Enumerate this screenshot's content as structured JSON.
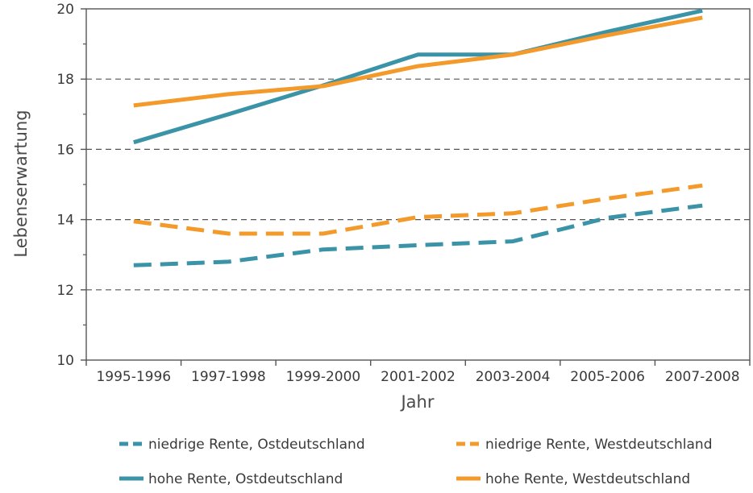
{
  "chart_data": {
    "type": "line",
    "title": "",
    "xlabel": "Jahr",
    "ylabel": "Lebenserwartung",
    "categories": [
      "1995-1996",
      "1997-1998",
      "1999-2000",
      "2001-2002",
      "2003-2004",
      "2005-2006",
      "2007-2008"
    ],
    "ylim": [
      10,
      20
    ],
    "yticks": [
      10,
      12,
      14,
      16,
      18,
      20
    ],
    "grid": "horizontal dashed at 12, 14, 16, 18",
    "legend_position": "bottom",
    "series": [
      {
        "name": "niedrige Rente, Ostdeutschland",
        "color": "#3a93a6",
        "dash": "dashed",
        "values": [
          12.7,
          12.8,
          13.15,
          13.27,
          13.38,
          14.05,
          14.4
        ]
      },
      {
        "name": "niedrige Rente, Westdeutschland",
        "color": "#f39a2a",
        "dash": "dashed",
        "values": [
          13.95,
          13.6,
          13.6,
          14.07,
          14.18,
          14.6,
          14.97
        ]
      },
      {
        "name": "hohe Rente, Ostdeutschland",
        "color": "#3a93a6",
        "dash": "solid",
        "values": [
          16.2,
          17.0,
          17.82,
          18.7,
          18.7,
          19.35,
          19.95
        ]
      },
      {
        "name": "hohe Rente, Westdeutschland",
        "color": "#f39a2a",
        "dash": "solid",
        "values": [
          17.25,
          17.57,
          17.8,
          18.37,
          18.7,
          19.25,
          19.75
        ]
      }
    ]
  }
}
